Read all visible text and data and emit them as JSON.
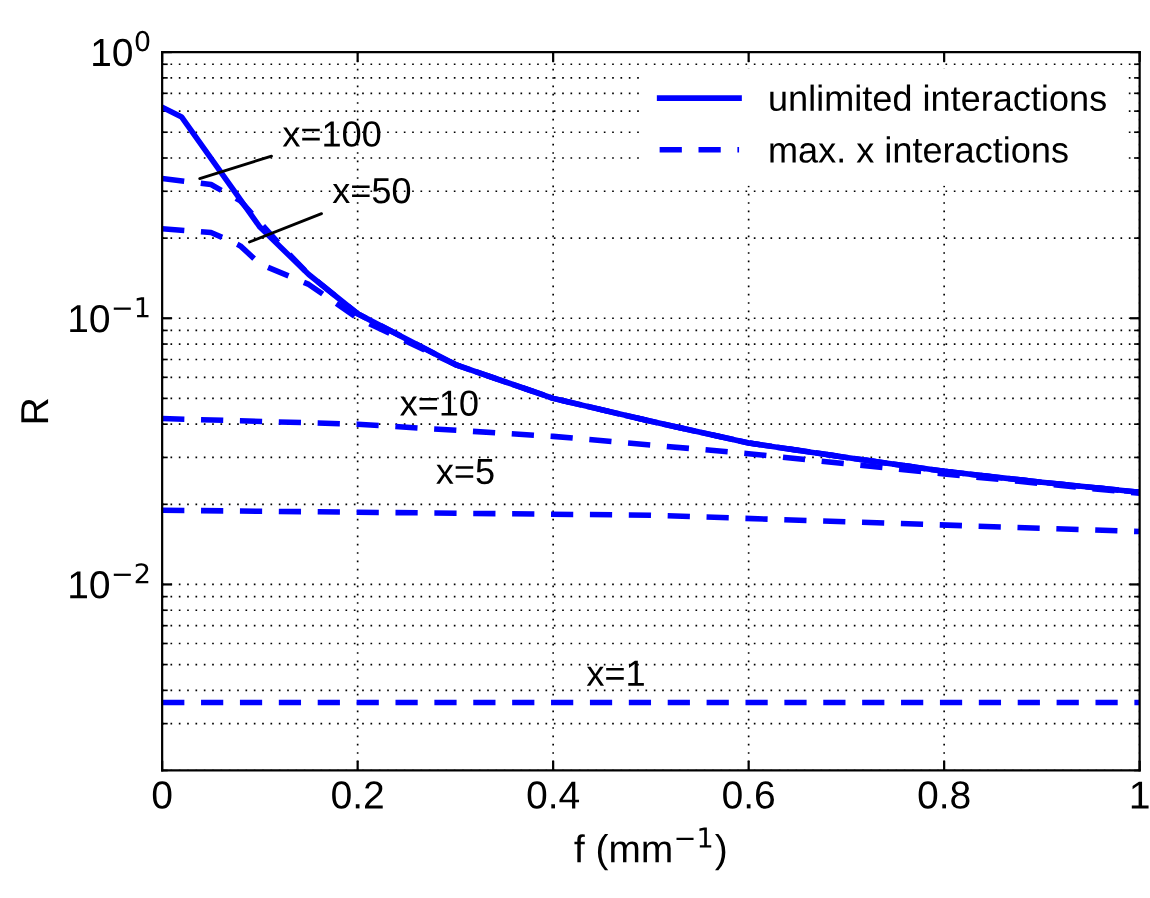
{
  "chart_data": {
    "type": "line",
    "xlabel": "f (mm$^{−1}$)",
    "ylabel": "R",
    "log": "y",
    "xlim": [
      0,
      1
    ],
    "ylim": [
      0.002,
      1
    ],
    "xticks": [
      0,
      0.2,
      0.4,
      0.6,
      0.8,
      1
    ],
    "yticks": [
      {
        "value": 0.01,
        "label": "10$^{−2}$"
      },
      {
        "value": 0.1,
        "label": "10$^{−1}$"
      },
      {
        "value": 1,
        "label": "10$^{0}$"
      }
    ],
    "grid": true,
    "legend": "top right",
    "series": [
      {
        "name": "unlimited interactions",
        "color": "#0000ff",
        "line_style": "solid",
        "x": [
          0,
          0.02,
          0.1,
          0.15,
          0.2,
          0.3,
          0.4,
          0.5,
          0.6,
          0.7,
          0.8,
          0.9,
          1
        ],
        "values": [
          0.62,
          0.57,
          0.22,
          0.146,
          0.104,
          0.067,
          0.05,
          0.041,
          0.034,
          0.03,
          0.0266,
          0.0242,
          0.0222
        ]
      },
      {
        "name": "max. x interactions",
        "color": "#0000ff",
        "line_style": "dashed",
        "x": [
          0,
          0.03,
          0.05,
          0.08,
          0.12,
          0.15,
          0.2,
          0.3,
          0.4,
          0.5,
          0.6,
          0.7,
          0.8,
          0.9,
          1
        ],
        "values": [
          0.335,
          0.325,
          0.318,
          0.276,
          0.19,
          0.146,
          0.104,
          0.067,
          0.05,
          0.041,
          0.034,
          0.03,
          0.0266,
          0.0242,
          0.0222
        ]
      },
      {
        "color": "#0000ff",
        "line_style": "dashed",
        "x": [
          0,
          0.05,
          0.07,
          0.08,
          0.1,
          0.15,
          0.2,
          0.3,
          0.4,
          0.5,
          0.6,
          0.7,
          0.8,
          0.9,
          1
        ],
        "values": [
          0.217,
          0.21,
          0.195,
          0.187,
          0.16,
          0.134,
          0.1,
          0.067,
          0.05,
          0.041,
          0.034,
          0.03,
          0.0266,
          0.0242,
          0.0222
        ]
      },
      {
        "color": "#0000ff",
        "line_style": "dashed",
        "x": [
          0,
          0.2,
          0.4,
          0.6,
          0.8,
          1
        ],
        "values": [
          0.042,
          0.04,
          0.036,
          0.031,
          0.026,
          0.022
        ]
      },
      {
        "color": "#0000ff",
        "line_style": "dashed",
        "x": [
          0,
          0.5,
          1
        ],
        "values": [
          0.019,
          0.0182,
          0.0158
        ]
      },
      {
        "color": "#0000ff",
        "line_style": "dashed",
        "x": [
          0,
          0.5,
          1
        ],
        "values": [
          0.0036,
          0.0036,
          0.0036
        ]
      }
    ],
    "annotations": [
      {
        "text": "x=100",
        "x": 0.033,
        "y": 0.33
      },
      {
        "text": "x=50",
        "x": 0.084,
        "y": 0.19
      },
      "x=10",
      "x=5",
      "x=1"
    ]
  }
}
